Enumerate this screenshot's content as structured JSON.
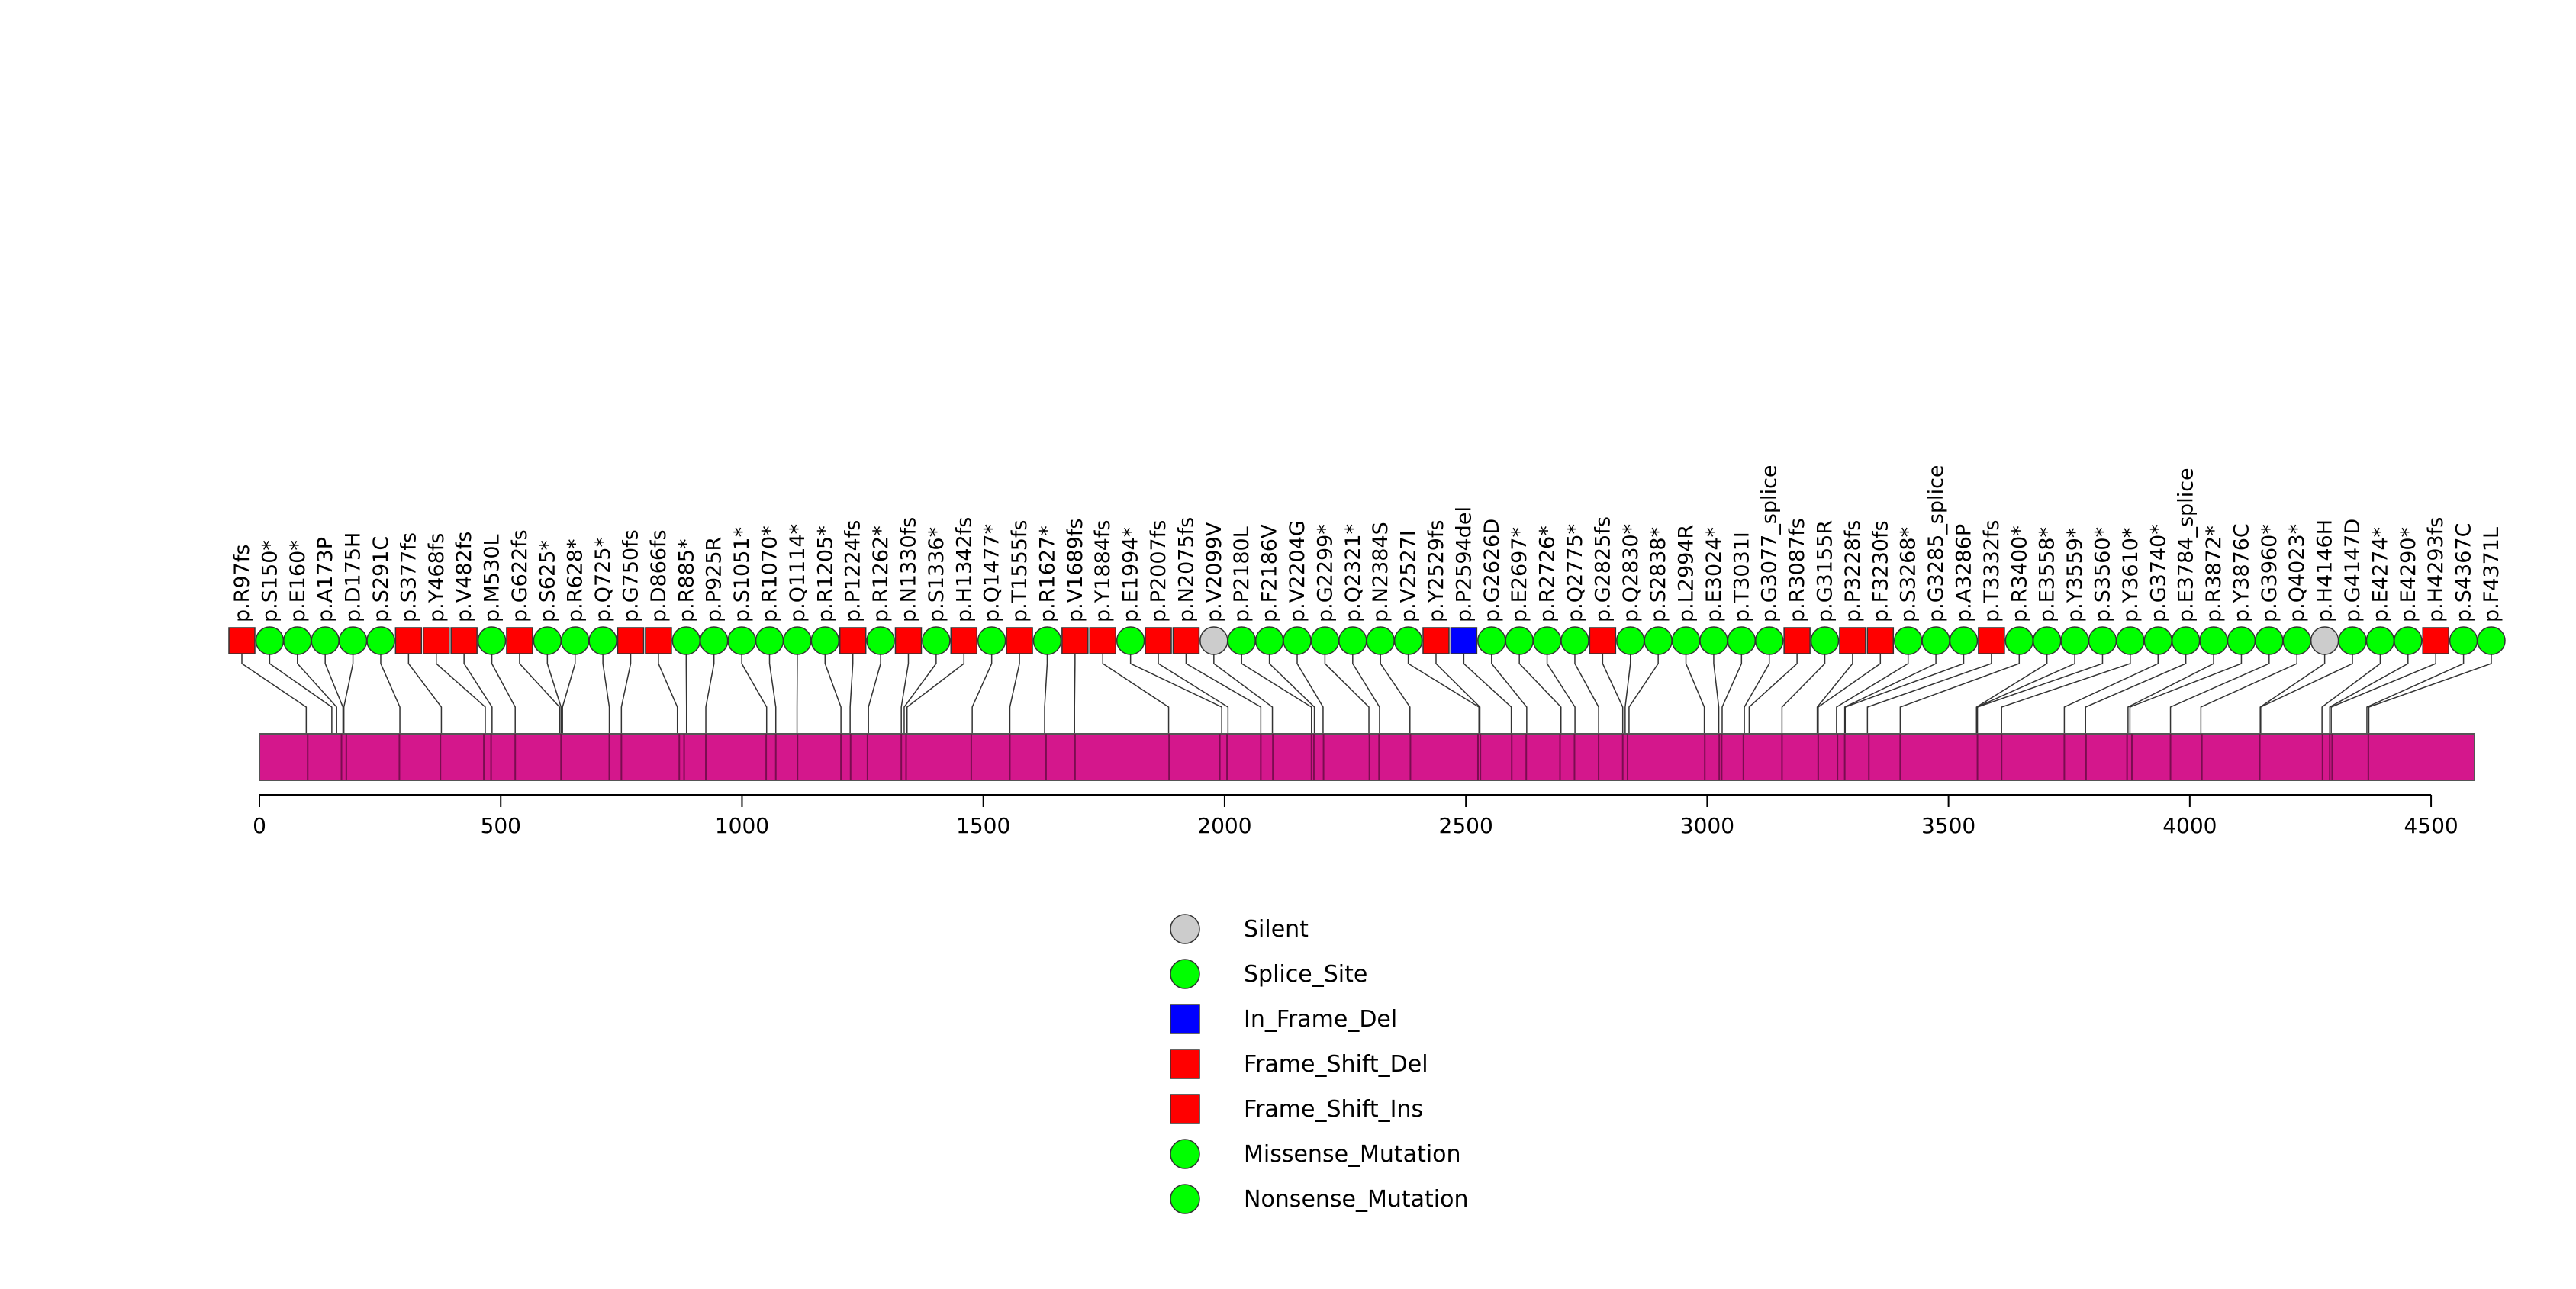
{
  "chart_data": {
    "type": "lollipop",
    "title": "",
    "protein_length": 4590,
    "axis": {
      "xlim": [
        0,
        4590
      ],
      "ticks": [
        0,
        500,
        1000,
        1500,
        2000,
        2500,
        3000,
        3500,
        4000,
        4500
      ]
    },
    "domain_color": "#d4178c",
    "mutations": [
      {
        "label": "p.R97fs",
        "pos": 97,
        "type": "Frame_Shift_Del"
      },
      {
        "label": "p.S150*",
        "pos": 150,
        "type": "Nonsense_Mutation"
      },
      {
        "label": "p.E160*",
        "pos": 160,
        "type": "Nonsense_Mutation"
      },
      {
        "label": "p.A173P",
        "pos": 173,
        "type": "Missense_Mutation"
      },
      {
        "label": "p.D175H",
        "pos": 175,
        "type": "Missense_Mutation"
      },
      {
        "label": "p.S291C",
        "pos": 291,
        "type": "Missense_Mutation"
      },
      {
        "label": "p.S377fs",
        "pos": 377,
        "type": "Frame_Shift_Del"
      },
      {
        "label": "p.Y468fs",
        "pos": 468,
        "type": "Frame_Shift_Ins"
      },
      {
        "label": "p.V482fs",
        "pos": 482,
        "type": "Frame_Shift_Del"
      },
      {
        "label": "p.M530L",
        "pos": 530,
        "type": "Missense_Mutation"
      },
      {
        "label": "p.G622fs",
        "pos": 622,
        "type": "Frame_Shift_Del"
      },
      {
        "label": "p.S625*",
        "pos": 625,
        "type": "Nonsense_Mutation"
      },
      {
        "label": "p.R628*",
        "pos": 628,
        "type": "Nonsense_Mutation"
      },
      {
        "label": "p.Q725*",
        "pos": 725,
        "type": "Nonsense_Mutation"
      },
      {
        "label": "p.G750fs",
        "pos": 750,
        "type": "Frame_Shift_Del"
      },
      {
        "label": "p.D866fs",
        "pos": 866,
        "type": "Frame_Shift_Del"
      },
      {
        "label": "p.R885*",
        "pos": 885,
        "type": "Nonsense_Mutation"
      },
      {
        "label": "p.P925R",
        "pos": 925,
        "type": "Missense_Mutation"
      },
      {
        "label": "p.S1051*",
        "pos": 1051,
        "type": "Nonsense_Mutation"
      },
      {
        "label": "p.R1070*",
        "pos": 1070,
        "type": "Nonsense_Mutation"
      },
      {
        "label": "p.Q1114*",
        "pos": 1114,
        "type": "Nonsense_Mutation"
      },
      {
        "label": "p.R1205*",
        "pos": 1205,
        "type": "Nonsense_Mutation"
      },
      {
        "label": "p.P1224fs",
        "pos": 1224,
        "type": "Frame_Shift_Del"
      },
      {
        "label": "p.R1262*",
        "pos": 1262,
        "type": "Nonsense_Mutation"
      },
      {
        "label": "p.N1330fs",
        "pos": 1330,
        "type": "Frame_Shift_Del"
      },
      {
        "label": "p.S1336*",
        "pos": 1336,
        "type": "Nonsense_Mutation"
      },
      {
        "label": "p.H1342fs",
        "pos": 1342,
        "type": "Frame_Shift_Del"
      },
      {
        "label": "p.Q1477*",
        "pos": 1477,
        "type": "Nonsense_Mutation"
      },
      {
        "label": "p.T1555fs",
        "pos": 1555,
        "type": "Frame_Shift_Del"
      },
      {
        "label": "p.R1627*",
        "pos": 1627,
        "type": "Nonsense_Mutation"
      },
      {
        "label": "p.V1689fs",
        "pos": 1689,
        "type": "Frame_Shift_Del"
      },
      {
        "label": "p.Y1884fs",
        "pos": 1884,
        "type": "Frame_Shift_Ins"
      },
      {
        "label": "p.E1994*",
        "pos": 1994,
        "type": "Nonsense_Mutation"
      },
      {
        "label": "p.P2007fs",
        "pos": 2007,
        "type": "Frame_Shift_Del"
      },
      {
        "label": "p.N2075fs",
        "pos": 2075,
        "type": "Frame_Shift_Del"
      },
      {
        "label": "p.V2099V",
        "pos": 2099,
        "type": "Silent"
      },
      {
        "label": "p.P2180L",
        "pos": 2180,
        "type": "Missense_Mutation"
      },
      {
        "label": "p.F2186V",
        "pos": 2186,
        "type": "Missense_Mutation"
      },
      {
        "label": "p.V2204G",
        "pos": 2204,
        "type": "Missense_Mutation"
      },
      {
        "label": "p.G2299*",
        "pos": 2299,
        "type": "Nonsense_Mutation"
      },
      {
        "label": "p.Q2321*",
        "pos": 2321,
        "type": "Nonsense_Mutation"
      },
      {
        "label": "p.N2384S",
        "pos": 2384,
        "type": "Missense_Mutation"
      },
      {
        "label": "p.V2527I",
        "pos": 2527,
        "type": "Missense_Mutation"
      },
      {
        "label": "p.Y2529fs",
        "pos": 2529,
        "type": "Frame_Shift_Del"
      },
      {
        "label": "p.P2594del",
        "pos": 2594,
        "type": "In_Frame_Del"
      },
      {
        "label": "p.G2626D",
        "pos": 2626,
        "type": "Missense_Mutation"
      },
      {
        "label": "p.E2697*",
        "pos": 2697,
        "type": "Nonsense_Mutation"
      },
      {
        "label": "p.R2726*",
        "pos": 2726,
        "type": "Nonsense_Mutation"
      },
      {
        "label": "p.Q2775*",
        "pos": 2775,
        "type": "Nonsense_Mutation"
      },
      {
        "label": "p.G2825fs",
        "pos": 2825,
        "type": "Frame_Shift_Del"
      },
      {
        "label": "p.Q2830*",
        "pos": 2830,
        "type": "Nonsense_Mutation"
      },
      {
        "label": "p.S2838*",
        "pos": 2838,
        "type": "Nonsense_Mutation"
      },
      {
        "label": "p.L2994R",
        "pos": 2994,
        "type": "Missense_Mutation"
      },
      {
        "label": "p.E3024*",
        "pos": 3024,
        "type": "Nonsense_Mutation"
      },
      {
        "label": "p.T3031I",
        "pos": 3031,
        "type": "Missense_Mutation"
      },
      {
        "label": "p.G3077_splice",
        "pos": 3077,
        "type": "Splice_Site"
      },
      {
        "label": "p.R3087fs",
        "pos": 3087,
        "type": "Frame_Shift_Del"
      },
      {
        "label": "p.G3155R",
        "pos": 3155,
        "type": "Missense_Mutation"
      },
      {
        "label": "p.P3228fs",
        "pos": 3228,
        "type": "Frame_Shift_Del"
      },
      {
        "label": "p.F3230fs",
        "pos": 3230,
        "type": "Frame_Shift_Ins"
      },
      {
        "label": "p.S3268*",
        "pos": 3268,
        "type": "Nonsense_Mutation"
      },
      {
        "label": "p.G3285_splice",
        "pos": 3285,
        "type": "Splice_Site"
      },
      {
        "label": "p.A3286P",
        "pos": 3286,
        "type": "Missense_Mutation"
      },
      {
        "label": "p.T3332fs",
        "pos": 3332,
        "type": "Frame_Shift_Del"
      },
      {
        "label": "p.R3400*",
        "pos": 3400,
        "type": "Nonsense_Mutation"
      },
      {
        "label": "p.E3558*",
        "pos": 3558,
        "type": "Nonsense_Mutation"
      },
      {
        "label": "p.Y3559*",
        "pos": 3559,
        "type": "Nonsense_Mutation"
      },
      {
        "label": "p.S3560*",
        "pos": 3560,
        "type": "Nonsense_Mutation"
      },
      {
        "label": "p.Y3610*",
        "pos": 3610,
        "type": "Nonsense_Mutation"
      },
      {
        "label": "p.G3740*",
        "pos": 3740,
        "type": "Nonsense_Mutation"
      },
      {
        "label": "p.E3784_splice",
        "pos": 3784,
        "type": "Splice_Site"
      },
      {
        "label": "p.R3872*",
        "pos": 3872,
        "type": "Nonsense_Mutation"
      },
      {
        "label": "p.Y3876C",
        "pos": 3876,
        "type": "Missense_Mutation"
      },
      {
        "label": "p.G3960*",
        "pos": 3960,
        "type": "Nonsense_Mutation"
      },
      {
        "label": "p.Q4023*",
        "pos": 4023,
        "type": "Nonsense_Mutation"
      },
      {
        "label": "p.H4146H",
        "pos": 4146,
        "type": "Silent"
      },
      {
        "label": "p.G4147D",
        "pos": 4147,
        "type": "Missense_Mutation"
      },
      {
        "label": "p.E4274*",
        "pos": 4274,
        "type": "Nonsense_Mutation"
      },
      {
        "label": "p.E4290*",
        "pos": 4290,
        "type": "Nonsense_Mutation"
      },
      {
        "label": "p.H4293fs",
        "pos": 4293,
        "type": "Frame_Shift_Del"
      },
      {
        "label": "p.S4367C",
        "pos": 4367,
        "type": "Missense_Mutation"
      },
      {
        "label": "p.F4371L",
        "pos": 4371,
        "type": "Missense_Mutation"
      }
    ],
    "domain_edges": [
      100,
      170,
      180,
      290,
      375,
      465,
      480,
      530,
      625,
      725,
      750,
      870,
      880,
      925,
      1050,
      1070,
      1115,
      1205,
      1225,
      1260,
      1330,
      1340,
      1475,
      1555,
      1630,
      1690,
      1885,
      1990,
      2005,
      2075,
      2100,
      2180,
      2185,
      2205,
      2300,
      2320,
      2385,
      2525,
      2530,
      2595,
      2625,
      2695,
      2725,
      2775,
      2825,
      2835,
      2995,
      3025,
      3030,
      3075,
      3155,
      3230,
      3270,
      3285,
      3335,
      3400,
      3560,
      3610,
      3740,
      3785,
      3870,
      3880,
      3960,
      4025,
      4145,
      4275,
      4290,
      4295,
      4370
    ],
    "legend": [
      {
        "label": "Silent",
        "shape": "circle",
        "color": "#cccccc"
      },
      {
        "label": "Splice_Site",
        "shape": "circle",
        "color": "#00ff00"
      },
      {
        "label": "In_Frame_Del",
        "shape": "square",
        "color": "#0000ff"
      },
      {
        "label": "Frame_Shift_Del",
        "shape": "square",
        "color": "#ff0000"
      },
      {
        "label": "Frame_Shift_Ins",
        "shape": "square",
        "color": "#ff0000"
      },
      {
        "label": "Missense_Mutation",
        "shape": "circle",
        "color": "#00ff00"
      },
      {
        "label": "Nonsense_Mutation",
        "shape": "circle",
        "color": "#00ff00"
      }
    ]
  }
}
